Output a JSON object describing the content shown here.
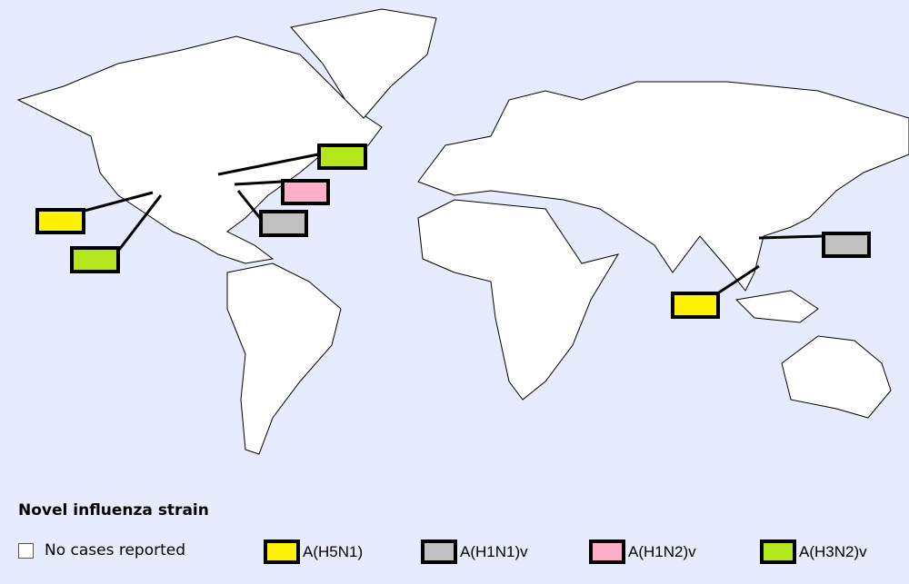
{
  "legend": {
    "title": "Novel influenza strain",
    "items": [
      {
        "label": "No cases reported",
        "color": "#ffffff"
      },
      {
        "label": "A(H5N1)",
        "color": "#fff200"
      },
      {
        "label": "A(H1N1)v",
        "color": "#c0c0c0"
      },
      {
        "label": "A(H1N2)v",
        "color": "#ffb0c8"
      },
      {
        "label": "A(H3N2)v",
        "color": "#b5e61d"
      }
    ]
  },
  "map": {
    "background": "#e6ebfd",
    "land": "#ffffff",
    "callouts": [
      {
        "region": "Great Lakes, United States",
        "strain": "A(H3N2)v"
      },
      {
        "region": "Eastern United States",
        "strain": "A(H1N2)v"
      },
      {
        "region": "Eastern United States",
        "strain": "A(H1N1)v"
      },
      {
        "region": "Western United States",
        "strain": "A(H5N1)"
      },
      {
        "region": "Western United States",
        "strain": "A(H3N2)v"
      },
      {
        "region": "Southern China",
        "strain": "A(H1N1)v"
      },
      {
        "region": "Vietnam / Cambodia",
        "strain": "A(H5N1)"
      }
    ]
  }
}
